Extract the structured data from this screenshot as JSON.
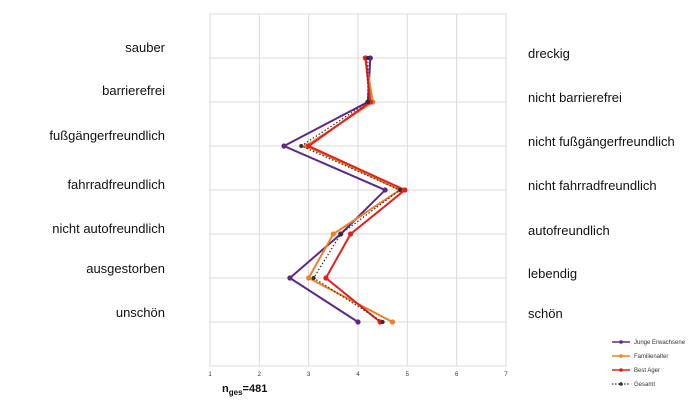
{
  "chart_data": {
    "type": "line",
    "orientation": "horizontal-profile",
    "left_labels": [
      "sauber",
      "barrierefrei",
      "fußgängerfreundlich",
      "fahrradfreundlich",
      "nicht autofreundlich",
      "ausgestorben",
      "unschön"
    ],
    "right_labels": [
      "dreckig",
      "nicht barrierefrei",
      "nicht fußgängerfreundlich",
      "nicht fahrradfreundlich",
      "autofreundlich",
      "lebendig",
      "schön"
    ],
    "x_ticks": [
      "1",
      "2",
      "3",
      "4",
      "5",
      "6",
      "7"
    ],
    "xlim": [
      1,
      7
    ],
    "grid": true,
    "legend_position": "bottom-right",
    "series": [
      {
        "name": "Junge Erwachsene",
        "color": "#5b2a86",
        "dash": "solid",
        "values": [
          4.25,
          4.2,
          2.5,
          4.55,
          3.65,
          2.62,
          4.0
        ]
      },
      {
        "name": "Familienalter",
        "color": "#e8822a",
        "dash": "solid",
        "values": [
          4.15,
          4.3,
          2.95,
          4.85,
          3.5,
          3.0,
          4.7
        ]
      },
      {
        "name": "Best Ager",
        "color": "#e41e1e",
        "dash": "solid",
        "values": [
          4.15,
          4.25,
          3.0,
          4.95,
          3.85,
          3.35,
          4.45
        ]
      },
      {
        "name": "Gesamt",
        "color": "#3a2a2a",
        "dash": "dotted",
        "values": [
          4.2,
          4.2,
          2.85,
          4.85,
          3.65,
          3.1,
          4.5
        ]
      }
    ]
  },
  "sample_size": {
    "prefix": "n",
    "subscript": "ges",
    "value": "=481"
  }
}
